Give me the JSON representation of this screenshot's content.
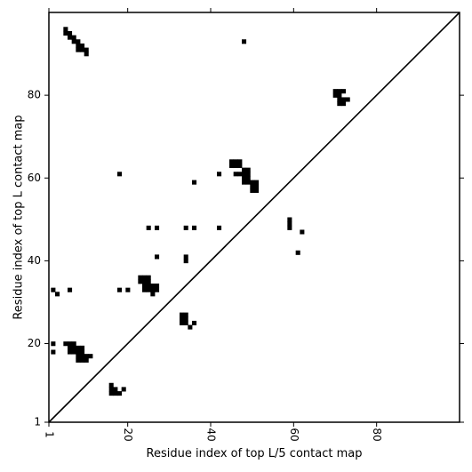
{
  "chart_data": {
    "type": "scatter",
    "marker": "square",
    "xlabel": "Residue index of top L/5 contact map",
    "ylabel": "Residue index of top L contact map",
    "xlim": [
      1,
      100
    ],
    "ylim": [
      1,
      100
    ],
    "grid": false,
    "legend": "none",
    "diagonal": true,
    "xticks": [
      {
        "value": 1,
        "label": "1"
      },
      {
        "value": 20,
        "label": "20"
      },
      {
        "value": 40,
        "label": "40"
      },
      {
        "value": 60,
        "label": "60"
      },
      {
        "value": 80,
        "label": "80"
      }
    ],
    "yticks": [
      {
        "value": 1,
        "label": "1"
      },
      {
        "value": 20,
        "label": "20"
      },
      {
        "value": 40,
        "label": "40"
      },
      {
        "value": 60,
        "label": "60"
      },
      {
        "value": 80,
        "label": "80"
      }
    ],
    "colors": {
      "marker": "#000000",
      "line": "#000000",
      "axis": "#000000"
    },
    "points": [
      [
        5,
        96
      ],
      [
        5,
        95
      ],
      [
        6,
        95
      ],
      [
        6,
        94
      ],
      [
        7,
        94
      ],
      [
        7,
        93
      ],
      [
        8,
        93
      ],
      [
        8,
        92
      ],
      [
        8,
        91
      ],
      [
        9,
        92
      ],
      [
        9,
        91
      ],
      [
        10,
        91
      ],
      [
        10,
        90
      ],
      [
        48,
        93
      ],
      [
        70,
        81
      ],
      [
        71,
        81
      ],
      [
        72,
        81
      ],
      [
        70,
        80
      ],
      [
        71,
        80
      ],
      [
        71,
        79
      ],
      [
        72,
        79
      ],
      [
        73,
        79
      ],
      [
        71,
        78
      ],
      [
        72,
        78
      ],
      [
        45,
        64
      ],
      [
        46,
        64
      ],
      [
        47,
        64
      ],
      [
        45,
        63
      ],
      [
        46,
        63
      ],
      [
        47,
        63
      ],
      [
        48,
        62
      ],
      [
        49,
        62
      ],
      [
        46,
        61
      ],
      [
        47,
        61
      ],
      [
        48,
        61
      ],
      [
        49,
        61
      ],
      [
        48,
        60
      ],
      [
        49,
        60
      ],
      [
        48,
        59
      ],
      [
        49,
        59
      ],
      [
        50,
        59
      ],
      [
        51,
        59
      ],
      [
        50,
        58
      ],
      [
        51,
        58
      ],
      [
        50,
        57
      ],
      [
        51,
        57
      ],
      [
        18,
        61
      ],
      [
        42,
        61
      ],
      [
        36,
        59
      ],
      [
        25,
        48
      ],
      [
        27,
        48
      ],
      [
        34,
        48
      ],
      [
        36,
        48
      ],
      [
        42,
        48
      ],
      [
        59,
        50
      ],
      [
        59,
        49
      ],
      [
        59,
        48
      ],
      [
        62,
        47
      ],
      [
        27,
        41
      ],
      [
        34,
        41
      ],
      [
        34,
        40
      ],
      [
        61,
        42
      ],
      [
        23,
        36
      ],
      [
        24,
        36
      ],
      [
        25,
        36
      ],
      [
        23,
        35
      ],
      [
        24,
        35
      ],
      [
        25,
        35
      ],
      [
        24,
        34
      ],
      [
        25,
        34
      ],
      [
        26,
        34
      ],
      [
        27,
        34
      ],
      [
        24,
        33
      ],
      [
        25,
        33
      ],
      [
        26,
        33
      ],
      [
        27,
        33
      ],
      [
        26,
        32
      ],
      [
        2,
        33
      ],
      [
        3,
        32
      ],
      [
        6,
        33
      ],
      [
        18,
        33
      ],
      [
        20,
        33
      ],
      [
        33,
        27
      ],
      [
        34,
        27
      ],
      [
        33,
        26
      ],
      [
        34,
        26
      ],
      [
        33,
        25
      ],
      [
        34,
        25
      ],
      [
        36,
        25
      ],
      [
        35,
        24
      ],
      [
        5,
        20
      ],
      [
        6,
        20
      ],
      [
        7,
        20
      ],
      [
        6,
        19
      ],
      [
        7,
        19
      ],
      [
        8,
        19
      ],
      [
        9,
        19
      ],
      [
        6,
        18
      ],
      [
        7,
        18
      ],
      [
        8,
        18
      ],
      [
        9,
        18
      ],
      [
        8,
        17
      ],
      [
        9,
        17
      ],
      [
        10,
        17
      ],
      [
        11,
        17
      ],
      [
        8,
        16
      ],
      [
        9,
        16
      ],
      [
        10,
        16
      ],
      [
        2,
        20
      ],
      [
        2,
        18
      ],
      [
        16,
        10
      ],
      [
        16,
        9
      ],
      [
        17,
        9
      ],
      [
        16,
        8
      ],
      [
        17,
        8
      ],
      [
        18,
        8
      ],
      [
        19,
        9
      ]
    ]
  }
}
